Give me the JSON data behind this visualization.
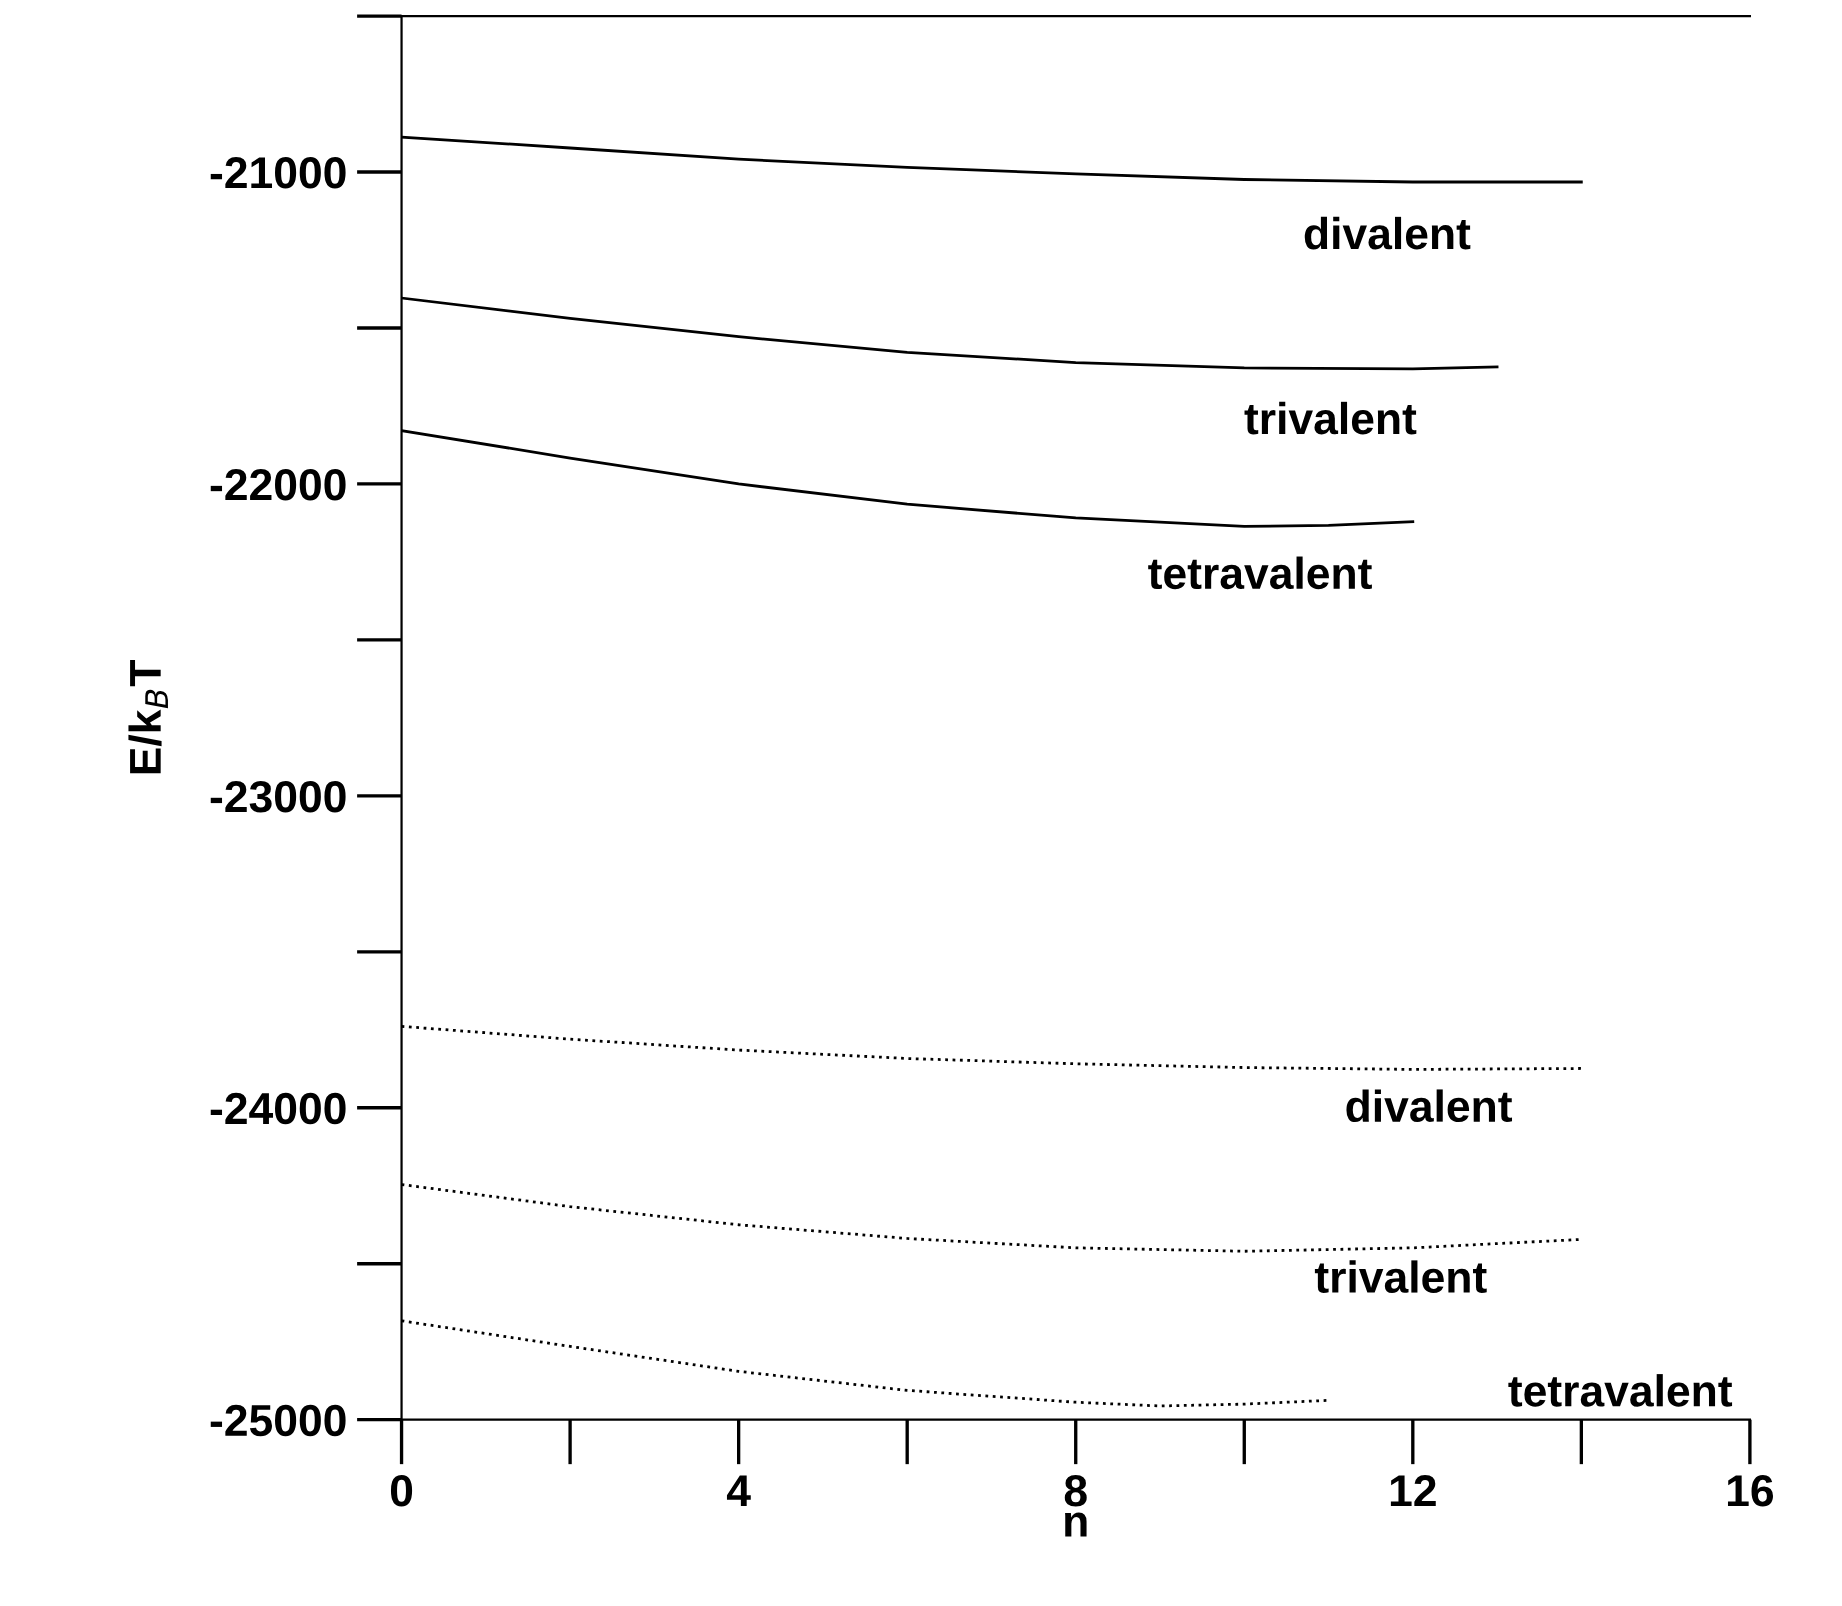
{
  "chart_data": {
    "type": "line",
    "xlabel": "n",
    "ylabel": "E/k$_{B}$T",
    "xlim": [
      0,
      16
    ],
    "xticks": [
      0,
      4,
      8,
      12,
      16
    ],
    "ylim": [
      -25000,
      -20500
    ],
    "yticks": [
      -25000,
      -24000,
      -23000,
      -22000,
      -21000
    ],
    "grid": false,
    "legend": false,
    "marker": "none",
    "series": [
      {
        "color": "#000000",
        "line_style": "solid",
        "x": [
          0,
          2,
          4,
          6,
          8,
          10,
          12,
          14
        ],
        "values": [
          -20888,
          -20923,
          -20959,
          -20985,
          -21006,
          -21024,
          -21032,
          -21032
        ]
      },
      {
        "color": "#000000",
        "line_style": "solid",
        "x": [
          0,
          2,
          4,
          6,
          8,
          10,
          12,
          13
        ],
        "values": [
          -21404,
          -21469,
          -21528,
          -21578,
          -21611,
          -21628,
          -21631,
          -21625
        ]
      },
      {
        "color": "#000000",
        "line_style": "solid",
        "x": [
          0,
          2,
          4,
          6,
          8,
          10,
          11,
          12
        ],
        "values": [
          -21829,
          -21917,
          -22000,
          -22065,
          -22109,
          -22136,
          -22133,
          -22121
        ]
      },
      {
        "color": "#000000",
        "line_style": "dotted",
        "x": [
          0,
          2,
          4,
          6,
          8,
          10,
          12,
          14
        ],
        "values": [
          -23739,
          -23780,
          -23815,
          -23842,
          -23859,
          -23871,
          -23877,
          -23874
        ]
      },
      {
        "color": "#000000",
        "line_style": "dotted",
        "x": [
          0,
          2,
          4,
          6,
          8,
          10,
          12,
          14
        ],
        "values": [
          -24246,
          -24317,
          -24375,
          -24419,
          -24449,
          -24460,
          -24449,
          -24422
        ]
      },
      {
        "color": "#000000",
        "line_style": "dotted",
        "x": [
          0,
          2,
          4,
          6,
          8,
          9,
          10,
          11
        ],
        "values": [
          -24683,
          -24765,
          -24845,
          -24906,
          -24944,
          -24956,
          -24950,
          -24938
        ]
      }
    ],
    "annotations": [
      "divalent",
      "trivalent",
      "tetravalent",
      "divalent",
      "trivalent",
      "tetravalent"
    ]
  }
}
